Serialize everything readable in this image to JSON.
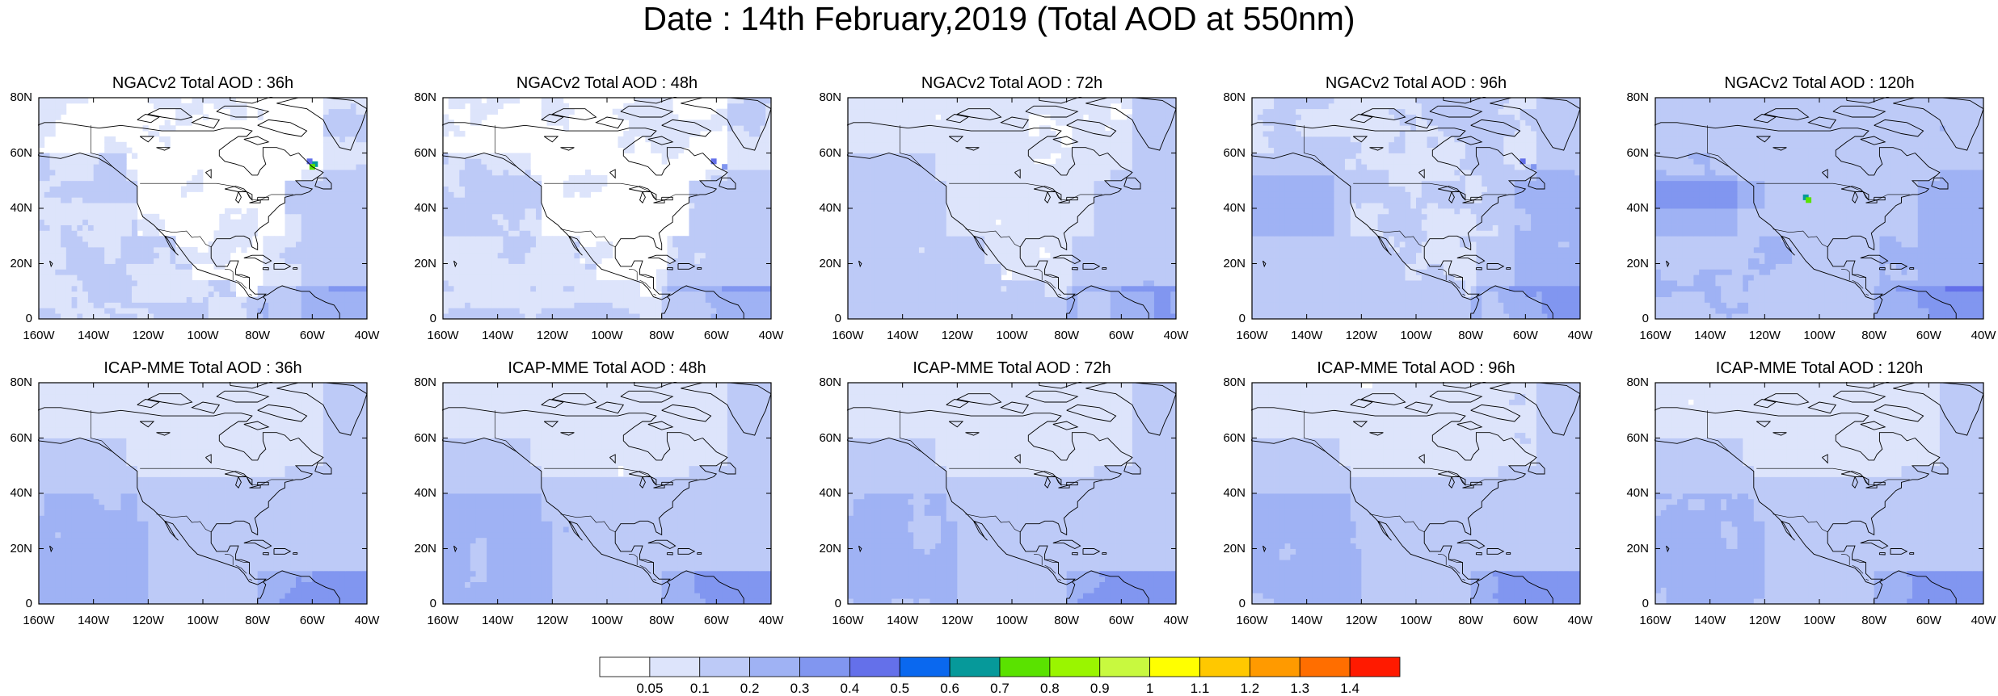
{
  "title": "Date : 14th February,2019 (Total AOD at 550nm)",
  "panels": [
    {
      "title": "NGACv2 Total AOD : 36h",
      "model": "NGACv2",
      "lead": "36h",
      "highlight": "green-spot-east"
    },
    {
      "title": "NGACv2 Total AOD : 48h",
      "model": "NGACv2",
      "lead": "48h",
      "highlight": "blue-spot-east"
    },
    {
      "title": "NGACv2 Total AOD : 72h",
      "model": "NGACv2",
      "lead": "72h",
      "highlight": "none"
    },
    {
      "title": "NGACv2 Total AOD : 96h",
      "model": "NGACv2",
      "lead": "96h",
      "highlight": "blue-spot-east"
    },
    {
      "title": "NGACv2 Total AOD : 120h",
      "model": "NGACv2",
      "lead": "120h",
      "highlight": "green-spot-central"
    },
    {
      "title": "ICAP-MME Total AOD : 36h",
      "model": "ICAP-MME",
      "lead": "36h",
      "highlight": "none"
    },
    {
      "title": "ICAP-MME Total AOD : 48h",
      "model": "ICAP-MME",
      "lead": "48h",
      "highlight": "none"
    },
    {
      "title": "ICAP-MME Total AOD : 72h",
      "model": "ICAP-MME",
      "lead": "72h",
      "highlight": "none"
    },
    {
      "title": "ICAP-MME Total AOD : 96h",
      "model": "ICAP-MME",
      "lead": "96h",
      "highlight": "none"
    },
    {
      "title": "ICAP-MME Total AOD : 120h",
      "model": "ICAP-MME",
      "lead": "120h",
      "highlight": "none"
    }
  ],
  "lat_labels": [
    "0",
    "20N",
    "40N",
    "60N",
    "80N"
  ],
  "lon_labels": [
    "160W",
    "140W",
    "120W",
    "100W",
    "80W",
    "60W",
    "40W"
  ],
  "colorbar": {
    "labels": [
      "0.05",
      "0.1",
      "0.2",
      "0.3",
      "0.4",
      "0.5",
      "0.6",
      "0.7",
      "0.8",
      "0.9",
      "1",
      "1.1",
      "1.2",
      "1.3",
      "1.4"
    ],
    "colors": [
      "#ffffff",
      "#dde4fb",
      "#bdcaf7",
      "#9fb2f4",
      "#8196f0",
      "#6470ea",
      "#0a68ef",
      "#06999a",
      "#5ae200",
      "#9af500",
      "#c8f93f",
      "#ffff00",
      "#ffc800",
      "#ff9a00",
      "#ff6e00",
      "#ff1a00"
    ]
  }
}
